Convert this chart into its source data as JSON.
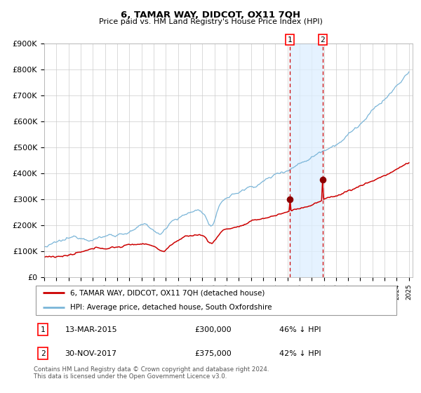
{
  "title": "6, TAMAR WAY, DIDCOT, OX11 7QH",
  "subtitle": "Price paid vs. HM Land Registry's House Price Index (HPI)",
  "hpi_label": "HPI: Average price, detached house, South Oxfordshire",
  "property_label": "6, TAMAR WAY, DIDCOT, OX11 7QH (detached house)",
  "hpi_color": "#7ab5d8",
  "property_color": "#cc0000",
  "point_color": "#8b0000",
  "vline_color": "#cc0000",
  "shade_color": "#ddeeff",
  "transaction1": {
    "date": "13-MAR-2015",
    "price": 300000,
    "year": 2015.19,
    "pct": "46% ↓ HPI"
  },
  "transaction2": {
    "date": "30-NOV-2017",
    "price": 375000,
    "year": 2017.91,
    "pct": "42% ↓ HPI"
  },
  "ylim": [
    0,
    900000
  ],
  "yticks": [
    0,
    100000,
    200000,
    300000,
    400000,
    500000,
    600000,
    700000,
    800000,
    900000
  ],
  "ytick_labels": [
    "£0",
    "£100K",
    "£200K",
    "£300K",
    "£400K",
    "£500K",
    "£600K",
    "£700K",
    "£800K",
    "£900K"
  ],
  "xmin": 1995,
  "xmax": 2025,
  "footer": "Contains HM Land Registry data © Crown copyright and database right 2024.\nThis data is licensed under the Open Government Licence v3.0.",
  "background_color": "#ffffff",
  "grid_color": "#cccccc"
}
